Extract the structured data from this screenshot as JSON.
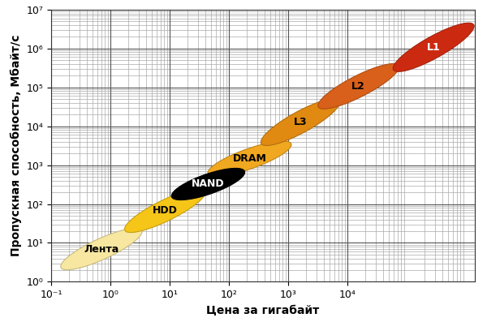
{
  "chart_data": {
    "type": "ellipse",
    "xlabel": "Цена за гигабайт",
    "ylabel": "Пропускная способность, Мбайт/с",
    "log": true,
    "grid": true,
    "xlim": [
      0.1,
      1400000
    ],
    "ylim": [
      1,
      10000000
    ],
    "xticks": [
      {
        "value": 0.1,
        "label": "10⁻¹"
      },
      {
        "value": 1,
        "label": "10⁰"
      },
      {
        "value": 10,
        "label": "10¹"
      },
      {
        "value": 100,
        "label": "10²"
      },
      {
        "value": 1000,
        "label": "10³"
      },
      {
        "value": 10000,
        "label": "10⁴"
      }
    ],
    "yticks": [
      {
        "value": 1,
        "label": "10⁰"
      },
      {
        "value": 10,
        "label": "10¹"
      },
      {
        "value": 100,
        "label": "10²"
      },
      {
        "value": 1000,
        "label": "10³"
      },
      {
        "value": 10000,
        "label": "10⁴"
      },
      {
        "value": 100000,
        "label": "10⁵"
      },
      {
        "value": 1000000,
        "label": "10⁶"
      },
      {
        "value": 10000000,
        "label": "10⁷"
      }
    ],
    "series": [
      {
        "name": "Лента",
        "color": "#f7e7a1",
        "x": [
          0.15,
          3.3
        ],
        "values": [
          2.2,
          22
        ]
      },
      {
        "name": "HDD",
        "color": "#f5c518",
        "x": [
          1.8,
          39
        ],
        "values": [
          20,
          230
        ]
      },
      {
        "name": "NAND",
        "color": "#000000",
        "x": [
          11,
          180
        ],
        "values": [
          145,
          730
        ]
      },
      {
        "name": "DRAM",
        "color": "#f0a820",
        "x": [
          45,
          1100
        ],
        "values": [
          580,
          3700
        ]
      },
      {
        "name": "L3",
        "color": "#e08a12",
        "x": [
          360,
          7100
        ],
        "values": [
          3400,
          48000
        ]
      },
      {
        "name": "L2",
        "color": "#d9601a",
        "x": [
          3300,
          71000
        ],
        "values": [
          30000,
          380000
        ]
      },
      {
        "name": "L1",
        "color": "#cc2a10",
        "x": [
          61000,
          1300000
        ],
        "values": [
          270000,
          4300000
        ]
      }
    ]
  }
}
